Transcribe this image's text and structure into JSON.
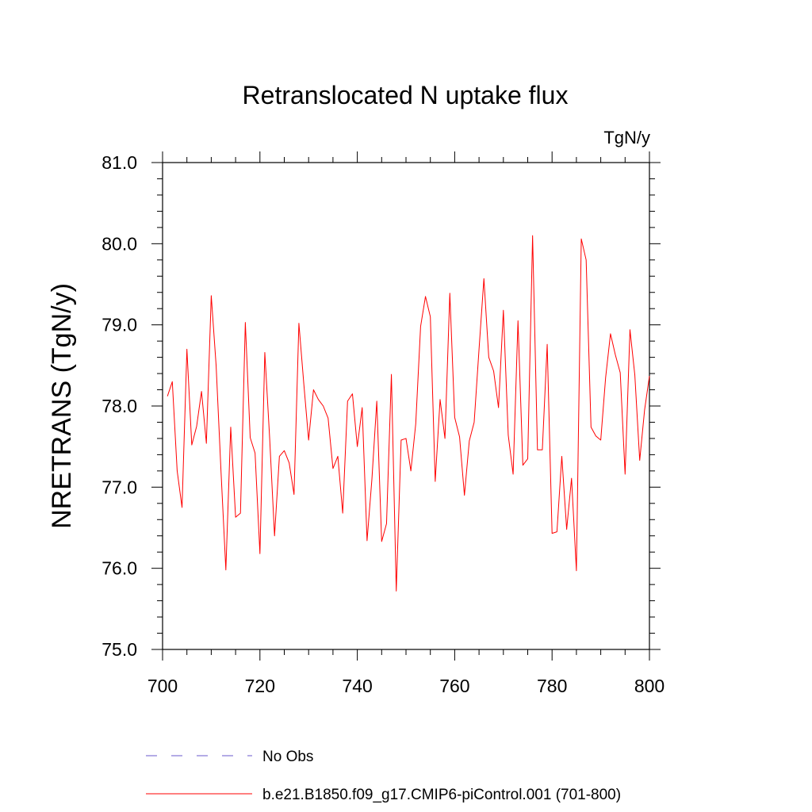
{
  "chart_data": {
    "type": "line",
    "title": "Retranslocated N uptake flux",
    "units_label": "TgN/y",
    "xlabel": "",
    "ylabel": "NRETRANS  (TgN/y)",
    "xlim": [
      700,
      800
    ],
    "ylim": [
      75.0,
      81.0
    ],
    "x_ticks": [
      700,
      720,
      740,
      760,
      780,
      800
    ],
    "x_tick_labels": [
      "700",
      "720",
      "740",
      "760",
      "780",
      "800"
    ],
    "y_ticks": [
      75.0,
      76.0,
      77.0,
      78.0,
      79.0,
      80.0,
      81.0
    ],
    "y_tick_labels": [
      "75.0",
      "76.0",
      "77.0",
      "78.0",
      "79.0",
      "80.0",
      "81.0"
    ],
    "grid": false,
    "legend_position": "bottom",
    "series": [
      {
        "name": "No Obs",
        "color": "#6a5acd",
        "style": "dashed",
        "x": [],
        "y": []
      },
      {
        "name": "b.e21.B1850.f09_g17.CMIP6-piControl.001 (701-800)",
        "color": "#ff0000",
        "style": "solid",
        "x": [
          701,
          702,
          703,
          704,
          705,
          706,
          707,
          708,
          709,
          710,
          711,
          712,
          713,
          714,
          715,
          716,
          717,
          718,
          719,
          720,
          721,
          722,
          723,
          724,
          725,
          726,
          727,
          728,
          729,
          730,
          731,
          732,
          733,
          734,
          735,
          736,
          737,
          738,
          739,
          740,
          741,
          742,
          743,
          744,
          745,
          746,
          747,
          748,
          749,
          750,
          751,
          752,
          753,
          754,
          755,
          756,
          757,
          758,
          759,
          760,
          761,
          762,
          763,
          764,
          765,
          766,
          767,
          768,
          769,
          770,
          771,
          772,
          773,
          774,
          775,
          776,
          777,
          778,
          779,
          780,
          781,
          782,
          783,
          784,
          785,
          786,
          787,
          788,
          789,
          790,
          791,
          792,
          793,
          794,
          795,
          796,
          797,
          798,
          799,
          800
        ],
        "y": [
          78.12,
          78.3,
          77.2,
          76.75,
          78.7,
          77.52,
          77.75,
          78.18,
          77.54,
          79.36,
          78.5,
          77.2,
          75.98,
          77.74,
          76.63,
          76.68,
          79.03,
          77.61,
          77.42,
          76.18,
          78.66,
          77.6,
          76.4,
          77.38,
          77.45,
          77.3,
          76.91,
          79.02,
          78.28,
          77.58,
          78.2,
          78.08,
          78.0,
          77.85,
          77.23,
          77.38,
          76.68,
          78.06,
          78.15,
          77.5,
          77.98,
          76.34,
          77.1,
          78.06,
          76.33,
          76.55,
          78.39,
          75.72,
          77.58,
          77.6,
          77.2,
          77.78,
          78.98,
          79.35,
          79.1,
          77.07,
          78.08,
          77.6,
          79.39,
          77.86,
          77.62,
          76.9,
          77.57,
          77.8,
          78.7,
          79.57,
          78.6,
          78.43,
          77.98,
          79.18,
          77.64,
          77.16,
          79.05,
          77.27,
          77.35,
          80.1,
          77.46,
          77.46,
          78.76,
          76.43,
          76.45,
          77.38,
          76.48,
          77.11,
          75.97,
          80.06,
          79.8,
          77.74,
          77.63,
          77.58,
          78.35,
          78.89,
          78.63,
          78.41,
          77.16,
          78.94,
          78.38,
          77.33,
          77.95,
          78.37
        ]
      }
    ]
  }
}
